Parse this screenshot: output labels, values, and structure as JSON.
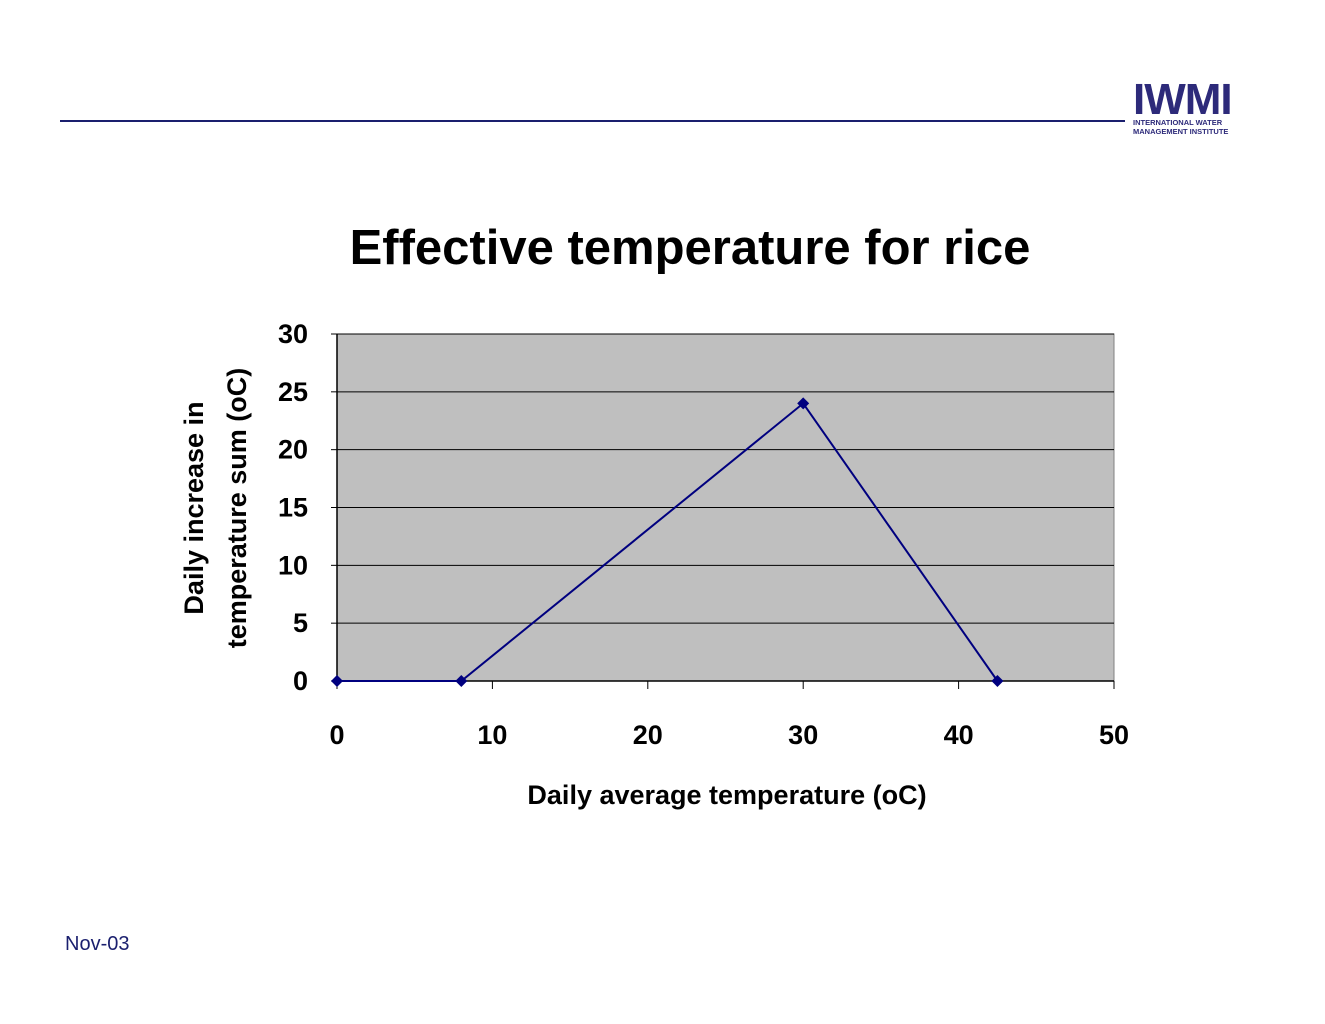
{
  "logo": {
    "mark": "IWMI",
    "line1": "INTERNATIONAL WATER",
    "line2": "MANAGEMENT INSTITUTE"
  },
  "footer": {
    "date": "Nov-03"
  },
  "colors": {
    "rule": "#1a1f6e",
    "plot_background": "#bfbfbf",
    "series": "#00007f"
  },
  "chart_data": {
    "type": "line",
    "title": "Effective temperature for rice",
    "xlabel": "Daily average temperature (oC)",
    "ylabel": [
      "Daily increase in",
      "temperature sum (oC)"
    ],
    "xlim": [
      0,
      50
    ],
    "ylim": [
      0,
      30
    ],
    "xticks": [
      0,
      10,
      20,
      30,
      40,
      50
    ],
    "yticks": [
      0,
      5,
      10,
      15,
      20,
      25,
      30
    ],
    "grid": "horizontal",
    "legend": "none",
    "series": [
      {
        "x": [
          0,
          8,
          30,
          42.5
        ],
        "y": [
          0,
          0,
          24,
          0
        ],
        "marker": "diamond"
      }
    ]
  }
}
